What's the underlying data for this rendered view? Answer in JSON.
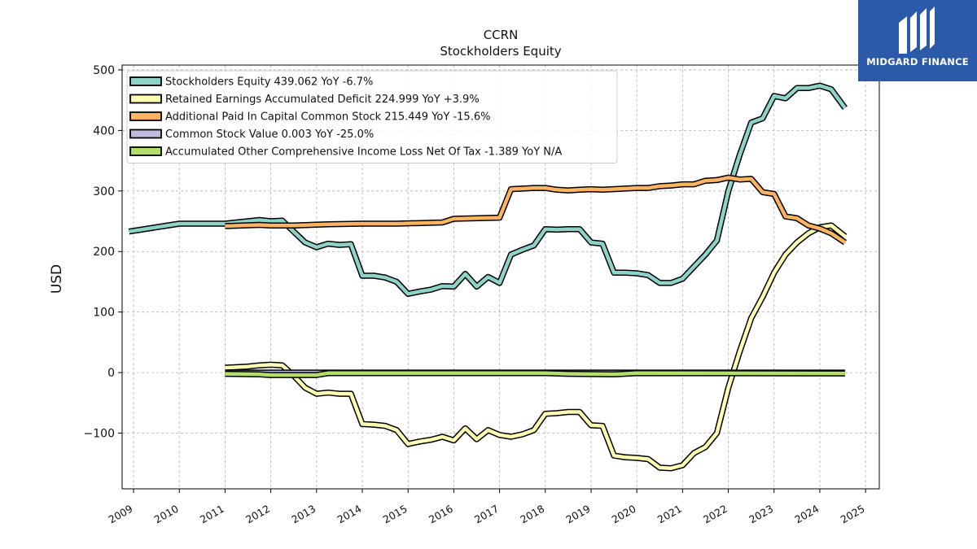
{
  "chart_data": {
    "type": "line",
    "title": "CCRN",
    "subtitle": "Stockholders  Equity",
    "ylabel": "USD",
    "xlabel": "",
    "xlim": [
      2008.75,
      2025.3
    ],
    "ylim": [
      -192,
      508
    ],
    "yticks": [
      -100,
      0,
      100,
      200,
      300,
      400,
      500
    ],
    "ytick_labels": [
      "−100",
      "0",
      "100",
      "200",
      "300",
      "400",
      "500"
    ],
    "xticks": [
      2009,
      2010,
      2011,
      2012,
      2013,
      2014,
      2015,
      2016,
      2017,
      2018,
      2019,
      2020,
      2021,
      2022,
      2023,
      2024,
      2025
    ],
    "xtick_labels": [
      "2009",
      "2010",
      "2011",
      "2012",
      "2013",
      "2014",
      "2015",
      "2016",
      "2017",
      "2018",
      "2019",
      "2020",
      "2021",
      "2022",
      "2023",
      "2024",
      "2025"
    ],
    "grid": true,
    "legend_position": "top-left",
    "series": [
      {
        "name": "Stockholders Equity",
        "legend": "Stockholders Equity  439.062 YoY -6.7%",
        "color": "#8dd3c7",
        "points": [
          [
            2008.9,
            233
          ],
          [
            2010.0,
            246
          ],
          [
            2011.0,
            246
          ],
          [
            2011.5,
            250
          ],
          [
            2011.75,
            252
          ],
          [
            2012.0,
            250
          ],
          [
            2012.25,
            251
          ],
          [
            2012.5,
            233
          ],
          [
            2012.75,
            215
          ],
          [
            2013.0,
            207
          ],
          [
            2013.25,
            213
          ],
          [
            2013.5,
            211
          ],
          [
            2013.75,
            212
          ],
          [
            2014.0,
            160
          ],
          [
            2014.25,
            160
          ],
          [
            2014.5,
            157
          ],
          [
            2014.75,
            150
          ],
          [
            2015.0,
            130
          ],
          [
            2015.25,
            134
          ],
          [
            2015.5,
            137
          ],
          [
            2015.75,
            143
          ],
          [
            2016.0,
            142
          ],
          [
            2016.25,
            163
          ],
          [
            2016.5,
            142
          ],
          [
            2016.75,
            158
          ],
          [
            2017.0,
            148
          ],
          [
            2017.25,
            195
          ],
          [
            2017.5,
            203
          ],
          [
            2017.75,
            210
          ],
          [
            2018.0,
            237
          ],
          [
            2018.25,
            236
          ],
          [
            2018.5,
            237
          ],
          [
            2018.75,
            237
          ],
          [
            2019.0,
            215
          ],
          [
            2019.25,
            213
          ],
          [
            2019.5,
            165
          ],
          [
            2019.75,
            165
          ],
          [
            2020.0,
            164
          ],
          [
            2020.25,
            161
          ],
          [
            2020.5,
            148
          ],
          [
            2020.75,
            148
          ],
          [
            2021.0,
            155
          ],
          [
            2021.25,
            175
          ],
          [
            2021.5,
            195
          ],
          [
            2021.75,
            218
          ],
          [
            2022.0,
            300
          ],
          [
            2022.25,
            360
          ],
          [
            2022.5,
            413
          ],
          [
            2022.75,
            420
          ],
          [
            2023.0,
            457
          ],
          [
            2023.25,
            453
          ],
          [
            2023.5,
            470
          ],
          [
            2023.75,
            470
          ],
          [
            2024.0,
            474
          ],
          [
            2024.25,
            468
          ],
          [
            2024.55,
            437
          ]
        ]
      },
      {
        "name": "Retained Earnings Accumulated Deficit",
        "legend": "Retained Earnings Accumulated Deficit  224.999 YoY +3.9%",
        "color": "#ffffb3",
        "points": [
          [
            2011.0,
            8
          ],
          [
            2011.5,
            10
          ],
          [
            2011.75,
            12
          ],
          [
            2012.0,
            13
          ],
          [
            2012.25,
            12
          ],
          [
            2012.5,
            -5
          ],
          [
            2012.75,
            -25
          ],
          [
            2013.0,
            -35
          ],
          [
            2013.25,
            -33
          ],
          [
            2013.5,
            -35
          ],
          [
            2013.75,
            -35
          ],
          [
            2014.0,
            -85
          ],
          [
            2014.25,
            -86
          ],
          [
            2014.5,
            -88
          ],
          [
            2014.75,
            -95
          ],
          [
            2015.0,
            -118
          ],
          [
            2015.25,
            -114
          ],
          [
            2015.5,
            -111
          ],
          [
            2015.75,
            -106
          ],
          [
            2016.0,
            -112
          ],
          [
            2016.25,
            -92
          ],
          [
            2016.5,
            -110
          ],
          [
            2016.75,
            -95
          ],
          [
            2017.0,
            -103
          ],
          [
            2017.25,
            -106
          ],
          [
            2017.5,
            -102
          ],
          [
            2017.75,
            -95
          ],
          [
            2018.0,
            -68
          ],
          [
            2018.25,
            -67
          ],
          [
            2018.5,
            -65
          ],
          [
            2018.75,
            -65
          ],
          [
            2019.0,
            -87
          ],
          [
            2019.25,
            -88
          ],
          [
            2019.5,
            -137
          ],
          [
            2019.75,
            -140
          ],
          [
            2020.0,
            -141
          ],
          [
            2020.25,
            -143
          ],
          [
            2020.5,
            -157
          ],
          [
            2020.75,
            -158
          ],
          [
            2021.0,
            -153
          ],
          [
            2021.25,
            -133
          ],
          [
            2021.5,
            -123
          ],
          [
            2021.75,
            -100
          ],
          [
            2022.0,
            -25
          ],
          [
            2022.25,
            35
          ],
          [
            2022.5,
            90
          ],
          [
            2022.75,
            125
          ],
          [
            2023.0,
            165
          ],
          [
            2023.25,
            195
          ],
          [
            2023.5,
            215
          ],
          [
            2023.75,
            230
          ],
          [
            2024.0,
            240
          ],
          [
            2024.25,
            243
          ],
          [
            2024.55,
            225
          ]
        ]
      },
      {
        "name": "Additional Paid In Capital Common Stock",
        "legend": "Additional Paid In Capital Common Stock  215.449 YoY -15.6%",
        "color": "#fdb462",
        "points": [
          [
            2011.0,
            242
          ],
          [
            2011.75,
            244
          ],
          [
            2012.0,
            243
          ],
          [
            2012.5,
            243
          ],
          [
            2013.25,
            245
          ],
          [
            2014.0,
            246
          ],
          [
            2014.75,
            246
          ],
          [
            2015.75,
            248
          ],
          [
            2016.0,
            254
          ],
          [
            2017.0,
            256
          ],
          [
            2017.25,
            303
          ],
          [
            2017.75,
            305
          ],
          [
            2018.0,
            305
          ],
          [
            2018.25,
            302
          ],
          [
            2018.5,
            301
          ],
          [
            2018.75,
            302
          ],
          [
            2019.0,
            303
          ],
          [
            2019.25,
            302
          ],
          [
            2020.0,
            305
          ],
          [
            2020.25,
            305
          ],
          [
            2020.5,
            308
          ],
          [
            2020.75,
            309
          ],
          [
            2021.0,
            311
          ],
          [
            2021.25,
            311
          ],
          [
            2021.5,
            317
          ],
          [
            2021.75,
            318
          ],
          [
            2022.0,
            322
          ],
          [
            2022.25,
            319
          ],
          [
            2022.5,
            320
          ],
          [
            2022.75,
            298
          ],
          [
            2023.0,
            295
          ],
          [
            2023.25,
            258
          ],
          [
            2023.5,
            255
          ],
          [
            2023.75,
            243
          ],
          [
            2024.0,
            238
          ],
          [
            2024.25,
            230
          ],
          [
            2024.55,
            215
          ]
        ]
      },
      {
        "name": "Common Stock Value",
        "legend": "Common Stock Value  0.003 YoY -25.0%",
        "color": "#bebada",
        "points": [
          [
            2011.0,
            0.003
          ],
          [
            2024.55,
            0.003
          ]
        ]
      },
      {
        "name": "Accumulated Other Comprehensive Income Loss Net Of Tax",
        "legend": "Accumulated Other Comprehensive Income Loss Net Of Tax  -1.389 YoY N/A",
        "color": "#b3de69",
        "points": [
          [
            2011.0,
            -2
          ],
          [
            2011.75,
            -3
          ],
          [
            2012.0,
            -4
          ],
          [
            2012.5,
            -4
          ],
          [
            2013.0,
            -4
          ],
          [
            2013.25,
            -1
          ],
          [
            2014.0,
            -1
          ],
          [
            2018.0,
            -1
          ],
          [
            2018.5,
            -2
          ],
          [
            2019.5,
            -3
          ],
          [
            2020.0,
            -1
          ],
          [
            2024.55,
            -1.4
          ]
        ]
      }
    ]
  },
  "logo": {
    "text": "MIDGARD FINANCE"
  }
}
